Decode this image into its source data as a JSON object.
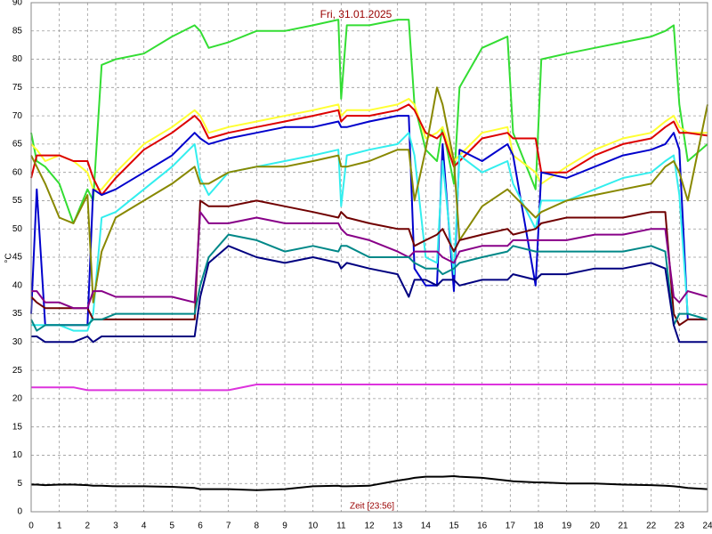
{
  "chart_data": {
    "type": "line",
    "title": "Fri, 31.01.2025",
    "x_label": "Zeit [23:56]",
    "y_label": "°C",
    "xlim": [
      0,
      24
    ],
    "ylim": [
      0,
      90
    ],
    "xticks": [
      0,
      1,
      2,
      3,
      4,
      5,
      6,
      7,
      8,
      9,
      10,
      11,
      12,
      13,
      14,
      15,
      16,
      17,
      18,
      19,
      20,
      21,
      22,
      23,
      24
    ],
    "yticks": [
      0,
      5,
      10,
      15,
      20,
      25,
      30,
      35,
      40,
      45,
      50,
      55,
      60,
      65,
      70,
      75,
      80,
      85,
      90
    ],
    "grid": true,
    "x": [
      0,
      0.2,
      0.5,
      1,
      1.5,
      2,
      2.2,
      2.5,
      3,
      4,
      5,
      5.8,
      6,
      6.3,
      7,
      8,
      9,
      10,
      10.9,
      11,
      11.2,
      12,
      13,
      13.4,
      13.6,
      14,
      14.4,
      14.6,
      15,
      15.2,
      16,
      16.9,
      17.1,
      17.9,
      18.1,
      19,
      20,
      21,
      22,
      22.5,
      22.8,
      23,
      23.3,
      24
    ],
    "series": [
      {
        "color": "#33dd33",
        "values": [
          67,
          62,
          61,
          58,
          51,
          57,
          55,
          79,
          80,
          81,
          84,
          86,
          85,
          82,
          83,
          85,
          85,
          86,
          87,
          73,
          86,
          86,
          87,
          87,
          72,
          64,
          62,
          68,
          58,
          75,
          82,
          84,
          67,
          57,
          80,
          81,
          82,
          83,
          84,
          85,
          86,
          72,
          62,
          65
        ]
      },
      {
        "color": "#ffff33",
        "values": [
          65,
          64,
          62,
          63,
          62,
          60,
          57,
          57,
          60,
          65,
          68,
          71,
          70,
          67,
          68,
          69,
          70,
          71,
          72,
          70,
          71,
          71,
          72,
          73,
          72,
          66,
          67,
          68,
          62,
          63,
          67,
          68,
          63,
          60,
          58,
          61,
          64,
          66,
          67,
          69,
          70,
          68,
          67,
          67
        ]
      },
      {
        "color": "#dd0000",
        "values": [
          59,
          63,
          63,
          63,
          62,
          62,
          59,
          56,
          59,
          64,
          67,
          70,
          69,
          66,
          67,
          68,
          69,
          70,
          71,
          69,
          70,
          70,
          71,
          72,
          71,
          67,
          66,
          67,
          61,
          62,
          66,
          67,
          66,
          66,
          60,
          60,
          63,
          65,
          66,
          68,
          69,
          67,
          67,
          66.5
        ]
      },
      {
        "color": "#0000cc",
        "values": [
          35,
          57,
          33,
          33,
          33,
          33,
          57,
          56,
          57,
          60,
          63,
          67,
          66,
          65,
          66,
          67,
          68,
          68,
          69,
          68,
          68,
          69,
          70,
          70,
          43,
          40,
          40,
          65,
          39,
          64,
          62,
          65,
          63,
          40,
          60,
          59,
          61,
          63,
          64,
          65,
          67,
          64,
          34,
          34
        ]
      },
      {
        "color": "#33eeee",
        "values": [
          33,
          33,
          33,
          33,
          32,
          32,
          35,
          52,
          53,
          57,
          61,
          65,
          59,
          56,
          60,
          61,
          62,
          63,
          64,
          54,
          63,
          64,
          65,
          67,
          63,
          45,
          44,
          62,
          42,
          63,
          60,
          62,
          58,
          50,
          55,
          55,
          57,
          59,
          60,
          62,
          63,
          56,
          35,
          34
        ]
      },
      {
        "color": "#888800",
        "values": [
          63,
          61,
          58,
          52,
          51,
          56,
          37,
          46,
          52,
          55,
          58,
          61,
          58,
          58,
          60,
          61,
          61,
          62,
          63,
          61,
          61,
          62,
          64,
          64,
          55,
          64,
          75,
          72,
          62,
          48,
          54,
          57,
          56,
          52,
          53,
          55,
          56,
          57,
          58,
          61,
          62,
          60,
          55,
          72
        ]
      },
      {
        "color": "#700000",
        "values": [
          38,
          37,
          36,
          36,
          36,
          36,
          34,
          34,
          34,
          34,
          34,
          34,
          55,
          54,
          54,
          55,
          54,
          53,
          52,
          53,
          52,
          51,
          50,
          50,
          47,
          48,
          49,
          50,
          46,
          48,
          49,
          50,
          49,
          50,
          51,
          52,
          52,
          52,
          53,
          53,
          35,
          33,
          34,
          34
        ]
      },
      {
        "color": "#880088",
        "values": [
          39,
          39,
          37,
          37,
          36,
          36,
          39,
          39,
          38,
          38,
          38,
          37,
          53,
          51,
          51,
          52,
          51,
          51,
          51,
          50,
          49,
          48,
          46,
          45,
          46,
          46,
          46,
          45,
          44,
          46,
          47,
          47,
          48,
          48,
          48,
          48,
          49,
          49,
          50,
          50,
          38,
          37,
          39,
          38
        ]
      },
      {
        "color": "#008888",
        "values": [
          34,
          32,
          33,
          33,
          33,
          33,
          34,
          34,
          35,
          35,
          35,
          35,
          40,
          45,
          49,
          48,
          46,
          47,
          46,
          47,
          47,
          45,
          45,
          45,
          44,
          43,
          43,
          42,
          43,
          44,
          45,
          46,
          47,
          46,
          46,
          46,
          46,
          46,
          47,
          46,
          33,
          35,
          35,
          34
        ]
      },
      {
        "color": "#000080",
        "values": [
          31,
          31,
          30,
          30,
          30,
          31,
          30,
          31,
          31,
          31,
          31,
          31,
          38,
          44,
          47,
          45,
          44,
          45,
          44,
          43,
          44,
          43,
          42,
          38,
          41,
          41,
          40,
          41,
          41,
          40,
          41,
          41,
          42,
          41,
          42,
          42,
          43,
          43,
          44,
          43,
          33,
          30,
          30,
          30
        ]
      },
      {
        "color": "#dd33dd",
        "values": [
          22,
          22,
          22,
          22,
          22,
          21.5,
          21.5,
          21.5,
          21.5,
          21.5,
          21.5,
          21.5,
          21.5,
          21.5,
          21.5,
          22.5,
          22.5,
          22.5,
          22.5,
          22.5,
          22.5,
          22.5,
          22.5,
          22.5,
          22.5,
          22.5,
          22.5,
          22.5,
          22.5,
          22.5,
          22.5,
          22.5,
          22.5,
          22.5,
          22.5,
          22.5,
          22.5,
          22.5,
          22.5,
          22.5,
          22.5,
          22.5,
          22.5,
          22.5
        ]
      },
      {
        "color": "#000000",
        "values": [
          4.8,
          4.8,
          4.7,
          4.8,
          4.8,
          4.7,
          4.6,
          4.6,
          4.5,
          4.5,
          4.4,
          4.2,
          4,
          4,
          4,
          3.8,
          4,
          4.5,
          4.6,
          4.5,
          4.5,
          4.6,
          5.5,
          5.8,
          6,
          6.2,
          6.2,
          6.2,
          6.3,
          6.2,
          6,
          5.5,
          5.4,
          5.2,
          5.2,
          5,
          5,
          4.8,
          4.7,
          4.6,
          4.5,
          4.4,
          4.2,
          4
        ]
      }
    ]
  }
}
